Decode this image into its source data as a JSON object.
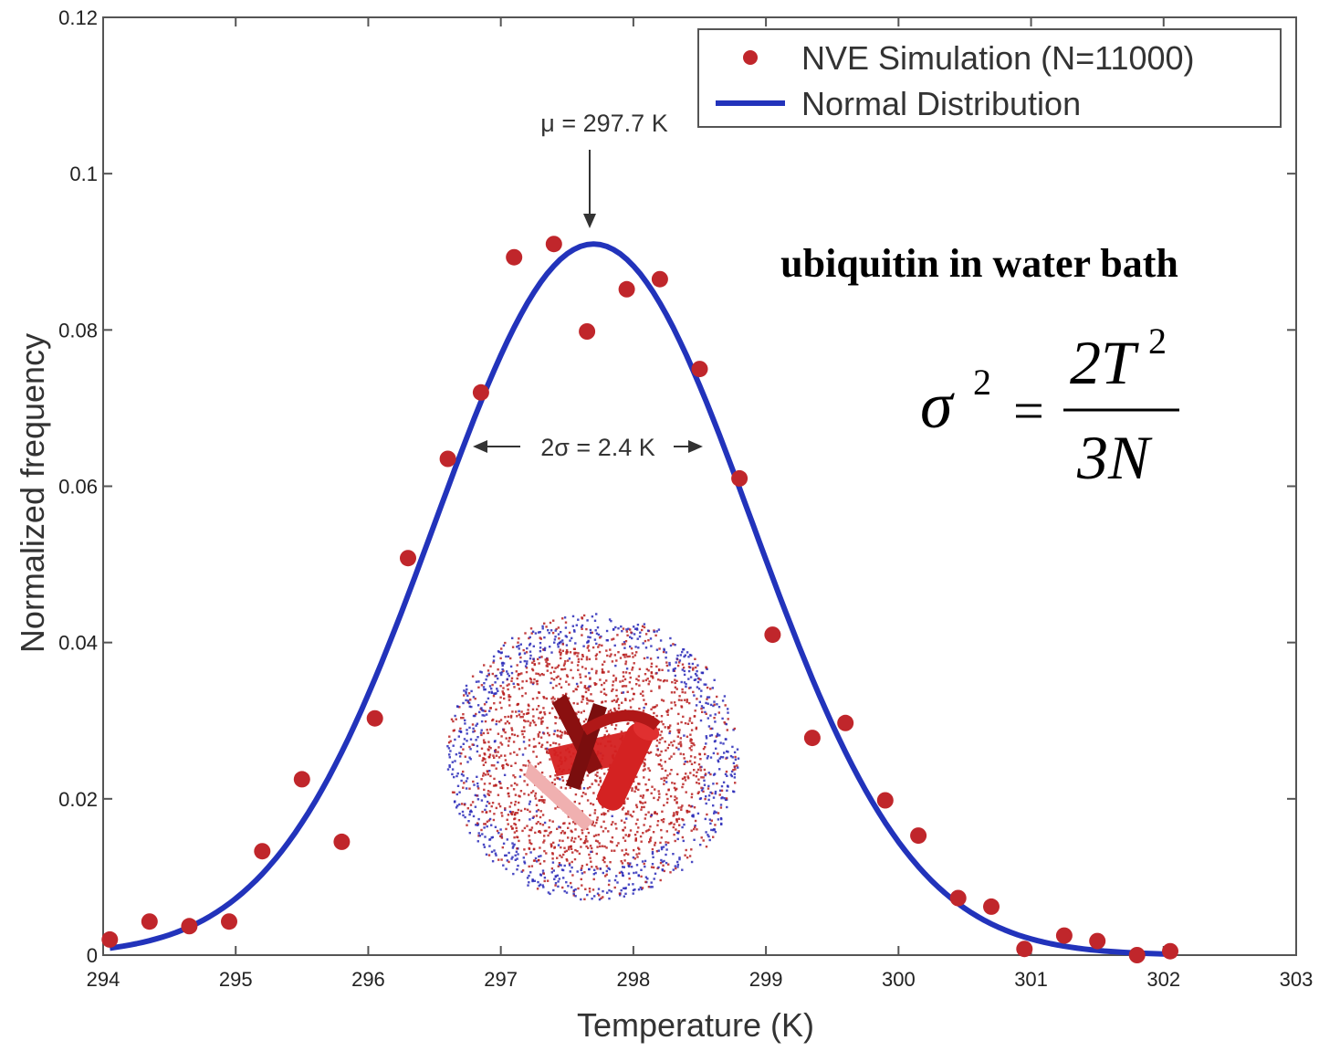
{
  "chart_data": {
    "type": "scatter",
    "title": "",
    "xlabel": "Temperature (K)",
    "ylabel": "Normalized frequency",
    "xlim": [
      294,
      303
    ],
    "ylim": [
      0,
      0.12
    ],
    "xticks": [
      294,
      295,
      296,
      297,
      298,
      299,
      300,
      301,
      302,
      303
    ],
    "xtick_labels": [
      "294",
      "295",
      "296",
      "297",
      "298",
      "299",
      "300",
      "301",
      "302",
      "303"
    ],
    "yticks": [
      0,
      0.02,
      0.04,
      0.06,
      0.08,
      0.1,
      0.12
    ],
    "ytick_labels": [
      "0",
      "0.02",
      "0.04",
      "0.06",
      "0.08",
      "0.1",
      "0.12"
    ],
    "grid": false,
    "legend_position": "top-right",
    "series": [
      {
        "name": "NVE Simulation (N=11000)",
        "kind": "points",
        "color": "#c0262b",
        "x": [
          294.05,
          294.35,
          294.65,
          294.95,
          295.2,
          295.5,
          295.8,
          296.05,
          296.3,
          296.6,
          296.85,
          297.1,
          297.4,
          297.65,
          297.95,
          298.2,
          298.5,
          298.8,
          299.05,
          299.35,
          299.6,
          299.9,
          300.15,
          300.45,
          300.7,
          300.95,
          301.25,
          301.5,
          301.8,
          302.05
        ],
        "y": [
          0.002,
          0.0043,
          0.0037,
          0.0043,
          0.0133,
          0.0225,
          0.0145,
          0.0303,
          0.0508,
          0.0635,
          0.072,
          0.0893,
          0.091,
          0.0798,
          0.0852,
          0.0865,
          0.075,
          0.061,
          0.041,
          0.0278,
          0.0297,
          0.0198,
          0.0153,
          0.0073,
          0.0062,
          0.0008,
          0.0025,
          0.0018,
          0.0,
          0.0005
        ]
      },
      {
        "name": "Normal Distribution",
        "kind": "line",
        "color": "#2233bb",
        "mean": 297.7,
        "sigma": 1.2,
        "amplitude": 0.091,
        "x_range": [
          294.05,
          302.05
        ]
      }
    ],
    "annotations": {
      "mu_label": "μ = 297.7 K",
      "sigma_label": "2σ = 2.4 K",
      "system_label": "ubiquitin in water bath"
    },
    "equation": {
      "sigma": "σ",
      "sup": "2",
      "equals": "=",
      "numerator": "2T",
      "numerator_sup": "2",
      "denominator": "3N"
    }
  }
}
